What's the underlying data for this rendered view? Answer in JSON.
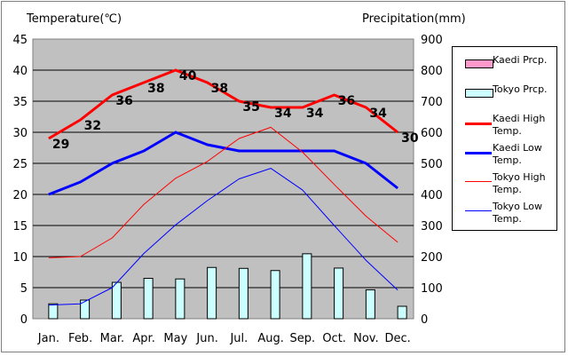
{
  "chart_data": {
    "type": "bar+line",
    "left_axis_title": "Temperature(℃)",
    "right_axis_title": "Precipitation(mm)",
    "categories": [
      "Jan.",
      "Feb.",
      "Mar.",
      "Apr.",
      "May",
      "Jun.",
      "Jul.",
      "Aug.",
      "Sep.",
      "Oct.",
      "Nov.",
      "Dec."
    ],
    "ylim_left": [
      0,
      45
    ],
    "ylim_right": [
      0,
      900
    ],
    "y_ticks_left": [
      "0",
      "5",
      "10",
      "15",
      "20",
      "25",
      "30",
      "35",
      "40",
      "45"
    ],
    "y_ticks_right": [
      "0",
      "100",
      "200",
      "300",
      "400",
      "500",
      "600",
      "700",
      "800",
      "900"
    ],
    "bars": [
      {
        "name": "Kaedi Prcp.",
        "color": "#ff99cc",
        "values": [
          0,
          0,
          0,
          0,
          0,
          0,
          0,
          0,
          0,
          0,
          0,
          0
        ]
      },
      {
        "name": "Tokyo Prcp.",
        "color": "#ccffff",
        "values": [
          48,
          60,
          117,
          130,
          128,
          165,
          162,
          155,
          209,
          163,
          93,
          40
        ]
      }
    ],
    "lines": [
      {
        "name": "Kaedi High Temp.",
        "color": "#ff0000",
        "width": 3,
        "values": [
          29,
          32,
          36,
          38,
          40,
          38,
          35,
          34,
          34,
          36,
          34,
          30
        ],
        "labels": [
          "29",
          "32",
          "36",
          "38",
          "40",
          "38",
          "35",
          "34",
          "34",
          "36",
          "34",
          "30"
        ]
      },
      {
        "name": "Kaedi Low Temp.",
        "color": "#0000ff",
        "width": 3,
        "values": [
          20,
          22,
          25,
          27,
          30,
          28,
          27,
          27,
          27,
          27,
          25,
          21
        ]
      },
      {
        "name": "Tokyo High Temp.",
        "color": "#ff0000",
        "width": 1,
        "values": [
          9.8,
          10,
          13,
          18.4,
          22.6,
          25.3,
          29,
          30.8,
          26.8,
          21.6,
          16.5,
          12.3
        ]
      },
      {
        "name": "Tokyo Low Temp.",
        "color": "#0000ff",
        "width": 1,
        "values": [
          2.2,
          2.4,
          5,
          10.5,
          15.1,
          19,
          22.5,
          24.2,
          20.7,
          15,
          9.4,
          4.6
        ]
      }
    ],
    "legend": {
      "position": "right",
      "entries": [
        {
          "label": "Kaedi Prcp.",
          "kind": "box",
          "color": "#ff99cc"
        },
        {
          "label": "Tokyo Prcp.",
          "kind": "box",
          "color": "#ccffff"
        },
        {
          "label": "Kaedi High Temp.",
          "kind": "line",
          "color": "#ff0000",
          "thick": true
        },
        {
          "label": "Kaedi Low Temp.",
          "kind": "line",
          "color": "#0000ff",
          "thick": true
        },
        {
          "label": "Tokyo High Temp.",
          "kind": "line",
          "color": "#ff0000",
          "thick": false
        },
        {
          "label": "Tokyo Low Temp.",
          "kind": "line",
          "color": "#0000ff",
          "thick": false
        }
      ]
    },
    "plot_background": "#c0c0c0",
    "grid": true
  }
}
